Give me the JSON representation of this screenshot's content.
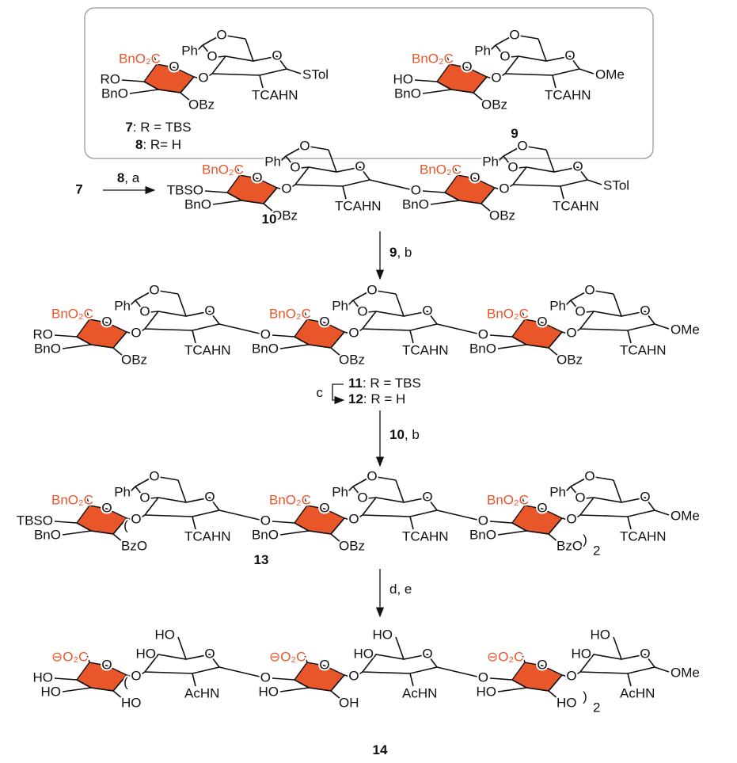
{
  "start_compound": "7",
  "arrows": [
    {
      "reagent_number": "8",
      "reagent_text": ", a"
    },
    {
      "reagent_number": "9",
      "reagent_text": ", b"
    },
    {
      "reagent_text": "c"
    },
    {
      "reagent_number": "10",
      "reagent_text": ", b"
    },
    {
      "reagent_text": "d, e"
    }
  ],
  "structures": [
    {
      "units": [
        {
          "acid": "BnO₂C",
          "gal_o": "O",
          "ph": "Ph",
          "ac_o1": "O",
          "ac_o2": "O",
          "glc_o": "O",
          "link_o": "O",
          "c4": "RO",
          "c3": "BnO",
          "c2": "OBz",
          "n": "TCAHN",
          "end": "STol"
        }
      ],
      "captions": [
        {
          "number": "7",
          "text": ": R = TBS"
        },
        {
          "number": "8",
          "text": ": R= H"
        }
      ]
    },
    {
      "units": [
        {
          "acid": "BnO₂C",
          "gal_o": "O",
          "ph": "Ph",
          "ac_o1": "O",
          "ac_o2": "O",
          "glc_o": "O",
          "link_o": "O",
          "c4": "HO",
          "c3": "BnO",
          "c2": "OBz",
          "n": "TCAHN",
          "end": "OMe"
        }
      ],
      "captions": [
        {
          "number": "9"
        }
      ]
    },
    {
      "units": [
        {
          "acid": "BnO₂C",
          "gal_o": "O",
          "ph": "Ph",
          "ac_o1": "O",
          "ac_o2": "O",
          "glc_o": "O",
          "link_o": "O",
          "c4": "TBSO",
          "c3": "BnO",
          "c2": "OBz",
          "n": "TCAHN"
        },
        {
          "acid": "BnO₂C",
          "gal_o": "O",
          "ph": "Ph",
          "ac_o1": "O",
          "ac_o2": "O",
          "glc_o": "O",
          "link_o": "O",
          "c4": "O",
          "c3": "BnO",
          "c2": "OBz",
          "n": "TCAHN",
          "end": "STol"
        }
      ],
      "captions": [
        {
          "number": "10"
        }
      ]
    },
    {
      "units": [
        {
          "acid": "BnO₂C",
          "gal_o": "O",
          "ph": "Ph",
          "ac_o1": "O",
          "ac_o2": "O",
          "glc_o": "O",
          "link_o": "O",
          "c4": "RO",
          "c3": "BnO",
          "c2": "OBz",
          "n": "TCAHN"
        },
        {
          "acid": "BnO₂C",
          "gal_o": "O",
          "ph": "Ph",
          "ac_o1": "O",
          "ac_o2": "O",
          "glc_o": "O",
          "link_o": "O",
          "c4": "O",
          "c3": "BnO",
          "c2": "OBz",
          "n": "TCAHN"
        },
        {
          "acid": "BnO₂C",
          "gal_o": "O",
          "ph": "Ph",
          "ac_o1": "O",
          "ac_o2": "O",
          "glc_o": "O",
          "link_o": "O",
          "c4": "O",
          "c3": "BnO",
          "c2": "OBz",
          "n": "TCAHN",
          "end": "OMe"
        }
      ],
      "captions": [
        {
          "number": "11",
          "text": ": R = TBS"
        },
        {
          "number": "12",
          "text": ": R = H"
        }
      ]
    },
    {
      "units": [
        {
          "acid": "BnO₂C",
          "gal_o": "O",
          "ph": "Ph",
          "ac_o1": "O",
          "ac_o2": "O",
          "glc_o": "O",
          "paren_open": "(",
          "link_o": "O",
          "c4": "TBSO",
          "c3": "BnO",
          "c2": "BzO",
          "n": "TCAHN"
        },
        {
          "acid": "BnO₂C",
          "gal_o": "O",
          "ph": "Ph",
          "ac_o1": "O",
          "ac_o2": "O",
          "glc_o": "O",
          "link_o": "O",
          "c4": "O",
          "c3": "BnO",
          "c2": "OBz",
          "n": "TCAHN"
        },
        {
          "acid": "BnO₂C",
          "gal_o": "O",
          "ph": "Ph",
          "ac_o1": "O",
          "ac_o2": "O",
          "glc_o": "O",
          "link_o": "O",
          "c4": "O",
          "c3": "BnO",
          "c2": "BzO",
          "paren_close": ")",
          "repeat": "2",
          "n": "TCAHN",
          "end": "OMe"
        }
      ],
      "captions": [
        {
          "number": "13"
        }
      ]
    },
    {
      "units": [
        {
          "acid": "⊖O₂C",
          "gal_o": "O",
          "ho6": "HO",
          "ho4": "HO",
          "glc_o": "O",
          "paren_open": "(",
          "link_o": "O",
          "c4": "HO",
          "c3": "HO",
          "c2": "HO",
          "n": "AcHN"
        },
        {
          "acid": "⊖O₂C",
          "gal_o": "O",
          "ho6": "HO",
          "ho4": "HO",
          "glc_o": "O",
          "link_o": "O",
          "c4": "O",
          "c3": "HO",
          "c2": "OH",
          "n": "AcHN"
        },
        {
          "acid": "⊖O₂C",
          "gal_o": "O",
          "ho6": "HO",
          "ho4": "HO",
          "glc_o": "O",
          "link_o": "O",
          "c4": "O",
          "c3": "HO",
          "c2": "HO",
          "paren_close": ")",
          "repeat": "2",
          "n": "AcHN",
          "end": "OMe"
        }
      ],
      "captions": [
        {
          "number": "14"
        }
      ]
    }
  ]
}
